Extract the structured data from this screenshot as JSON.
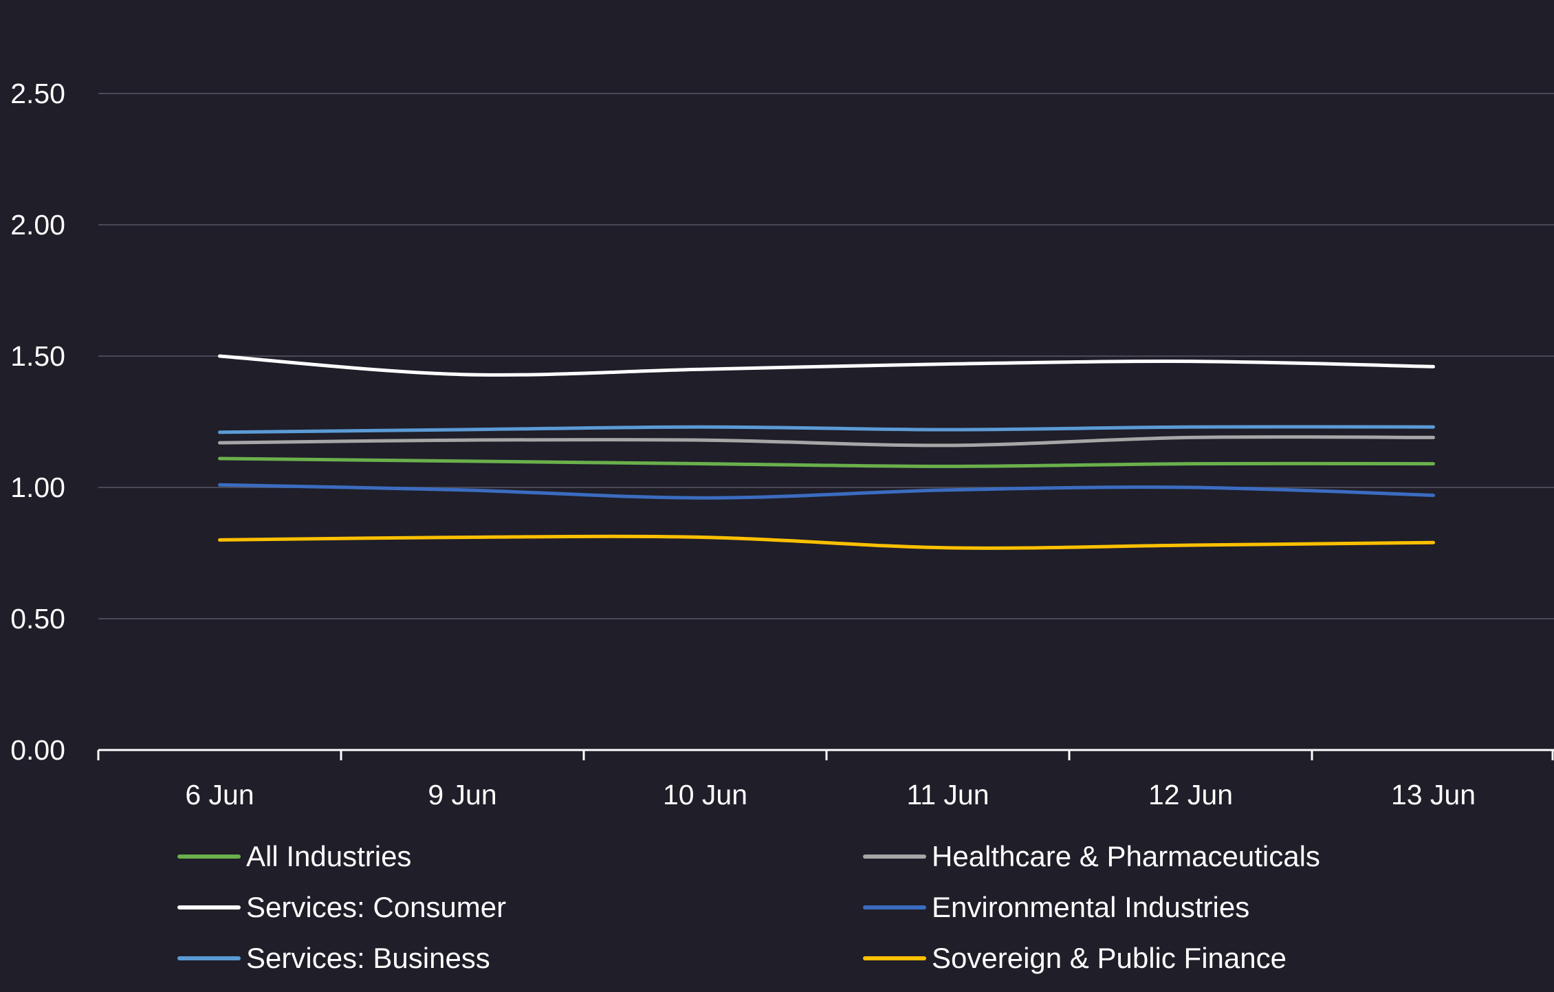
{
  "chart_data": {
    "type": "line",
    "title": "",
    "xlabel": "",
    "ylabel": "",
    "ylim": [
      0,
      2.5
    ],
    "grid": true,
    "legend_position": "bottom",
    "categories": [
      "6 Jun",
      "9 Jun",
      "10 Jun",
      "11 Jun",
      "12 Jun",
      "13 Jun"
    ],
    "y_ticks": [
      "0.00",
      "0.50",
      "1.00",
      "1.50",
      "2.00",
      "2.50"
    ],
    "y_tick_values": [
      0,
      0.5,
      1.0,
      1.5,
      2.0,
      2.5
    ],
    "series": [
      {
        "name": "All Industries",
        "color": "#6ab04c",
        "values": [
          1.11,
          1.1,
          1.09,
          1.08,
          1.09,
          1.09
        ]
      },
      {
        "name": "Services: Consumer",
        "color": "#ffffff",
        "values": [
          1.5,
          1.43,
          1.45,
          1.47,
          1.48,
          1.46
        ]
      },
      {
        "name": "Services: Business",
        "color": "#5b9bd5",
        "values": [
          1.21,
          1.22,
          1.23,
          1.22,
          1.23,
          1.23
        ]
      },
      {
        "name": "Healthcare & Pharmaceuticals",
        "color": "#a6a6a6",
        "values": [
          1.17,
          1.18,
          1.18,
          1.16,
          1.19,
          1.19
        ]
      },
      {
        "name": "Environmental Industries",
        "color": "#3b6cc0",
        "values": [
          1.01,
          0.99,
          0.96,
          0.99,
          1.0,
          0.97
        ]
      },
      {
        "name": "Sovereign & Public Finance",
        "color": "#ffc000",
        "values": [
          0.8,
          0.81,
          0.81,
          0.77,
          0.78,
          0.79
        ]
      }
    ]
  }
}
